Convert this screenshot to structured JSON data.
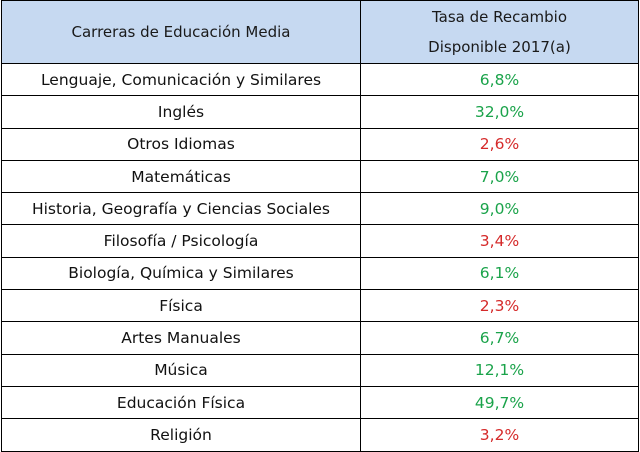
{
  "table": {
    "header": {
      "career": "Carreras de Educación Media",
      "rate_line1": "Tasa de Recambio",
      "rate_line2": "Disponible 2017(a)"
    },
    "colors": {
      "header_bg": "#c6d9f1",
      "positive": "#1aa34a",
      "negative": "#d52a2a"
    },
    "rows": [
      {
        "career": "Lenguaje, Comunicación y Similares",
        "rate": "6,8%",
        "status": "green"
      },
      {
        "career": "Inglés",
        "rate": "32,0%",
        "status": "green"
      },
      {
        "career": "Otros Idiomas",
        "rate": "2,6%",
        "status": "red"
      },
      {
        "career": "Matemáticas",
        "rate": "7,0%",
        "status": "green"
      },
      {
        "career": "Historia, Geografía y Ciencias Sociales",
        "rate": "9,0%",
        "status": "green"
      },
      {
        "career": "Filosofía / Psicología",
        "rate": "3,4%",
        "status": "red"
      },
      {
        "career": "Biología, Química y Similares",
        "rate": "6,1%",
        "status": "green"
      },
      {
        "career": "Física",
        "rate": "2,3%",
        "status": "red"
      },
      {
        "career": "Artes Manuales",
        "rate": "6,7%",
        "status": "green"
      },
      {
        "career": "Música",
        "rate": "12,1%",
        "status": "green"
      },
      {
        "career": "Educación Física",
        "rate": "49,7%",
        "status": "green"
      },
      {
        "career": "Religión",
        "rate": "3,2%",
        "status": "red"
      }
    ]
  }
}
